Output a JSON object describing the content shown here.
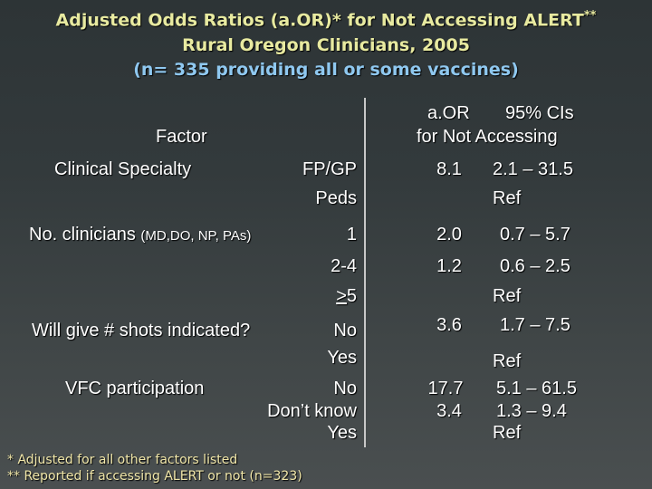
{
  "title": {
    "line1": "Adjusted Odds Ratios (a.OR)* for Not Accessing ALERT",
    "line1_sup": "**",
    "line2": "Rural Oregon Clinicians, 2005",
    "line3": "(n= 335 providing all or some vaccines)"
  },
  "headers": {
    "factor": "Factor",
    "aor": "a.OR",
    "ci": "95% CIs",
    "for_not": "for Not Accessing"
  },
  "rows": {
    "specialty_label": "Clinical Specialty",
    "fpgp": {
      "level": "FP/GP",
      "aor": "8.1",
      "ci": "2.1 – 31.5"
    },
    "peds": {
      "level": "Peds",
      "ci": "Ref"
    },
    "clin_label": "No. clinicians",
    "clin_sub": "(MD,DO, NP, PAs)",
    "clin1": {
      "level": "1",
      "aor": "2.0",
      "ci": "0.7 – 5.7"
    },
    "clin24": {
      "level": "2-4",
      "aor": "1.2",
      "ci": "0.6 – 2.5"
    },
    "clin5": {
      "level_prefix": ">",
      "level_rest": "5",
      "ci": "Ref"
    },
    "shots_label": "Will give # shots indicated?",
    "shots_no": {
      "level": "No",
      "aor": "3.6",
      "ci": "1.7 – 7.5"
    },
    "shots_yes": {
      "level": "Yes",
      "ci": "Ref"
    },
    "vfc_label": "VFC participation",
    "vfc_no": {
      "level": "No",
      "aor": "17.7",
      "ci": "5.1 – 61.5"
    },
    "vfc_dk": {
      "level": "Don’t know",
      "aor": "3.4",
      "ci": "1.3 – 9.4"
    },
    "vfc_yes": {
      "level": "Yes",
      "ci": "Ref"
    }
  },
  "footnotes": {
    "f1": "* Adjusted for all other factors listed",
    "f2": "** Reported if accessing ALERT or not (n=323)"
  }
}
